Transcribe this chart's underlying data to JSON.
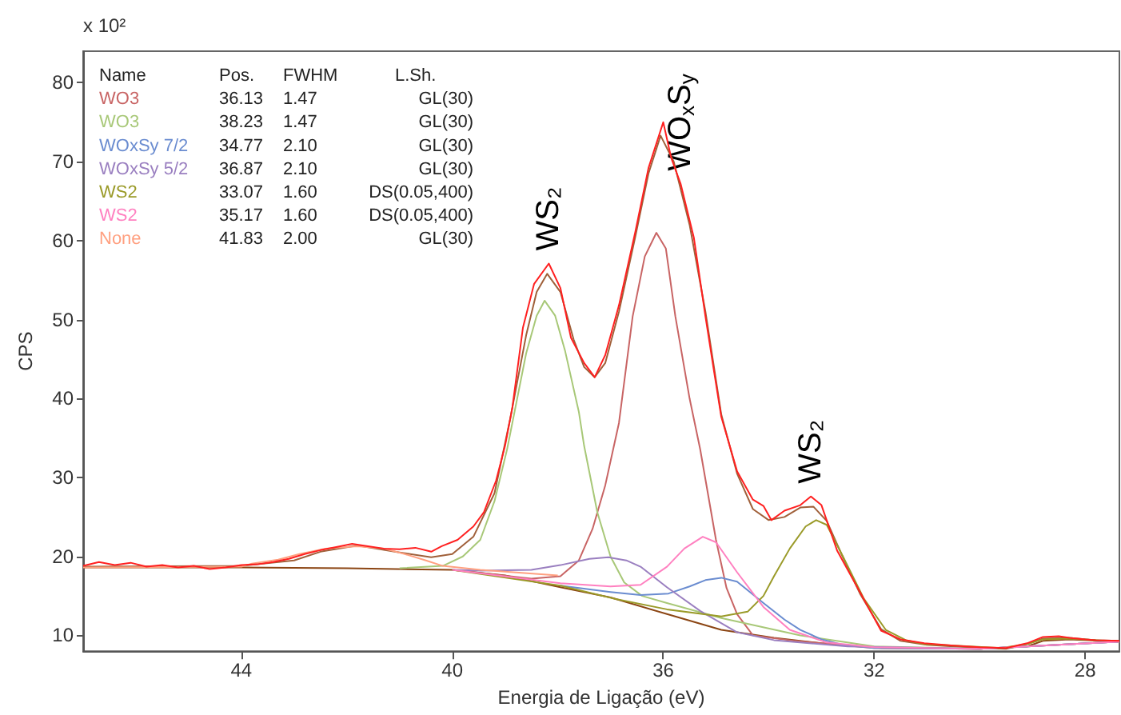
{
  "chart_data": {
    "type": "line",
    "xlabel": "Energia de Ligação (eV)",
    "ylabel": "CPS",
    "xlim": [
      47,
      27.35
    ],
    "xticks": [
      44,
      40,
      36,
      32,
      28
    ],
    "ylim": [
      8,
      84
    ],
    "yticks": [
      10,
      20,
      30,
      40,
      50,
      60,
      70,
      80
    ],
    "legend": "top left",
    "grid": false,
    "marker": "none",
    "line_style": "solid",
    "annotations": [
      "x 10²",
      "Name",
      "Pos.",
      "FWHM",
      "L.Sh.",
      "36.13",
      "1.47",
      "GL(30)",
      "38.23",
      "1.47",
      "GL(30)",
      "34.77",
      "2.10",
      "GL(30)",
      "36.87",
      "2.10",
      "GL(30)",
      "33.07",
      "1.60",
      "DS(0.05,400)",
      "35.17",
      "1.60",
      "DS(0.05,400)",
      "41.83",
      "2.00",
      "GL(30)",
      {
        "text": "WS₂",
        "x": 38.17,
        "y": 57.1
      },
      {
        "text": "WO$_{x}$S$_{y}$",
        "x": 35.67,
        "y": 67.2
      },
      {
        "text": "WS₂",
        "x": 33.2,
        "y": 27.6
      }
    ],
    "series": [
      {
        "color": "#a0603a",
        "x": [
          47,
          44,
          43,
          42.5,
          41.8,
          41,
          40.4,
          40,
          39.6,
          39.2,
          38.9,
          38.6,
          38.4,
          38.2,
          37.95,
          37.7,
          37.5,
          37.3,
          37.1,
          36.84,
          36.53,
          36.28,
          36.05,
          35.8,
          35.5,
          35.2,
          34.9,
          34.6,
          34.3,
          34,
          33.7,
          33.4,
          33.15,
          32.9,
          32.6,
          32.27,
          31.87,
          31.5,
          31,
          30,
          29.5,
          29.1,
          28.8,
          28.3,
          27.8,
          27.35
        ],
        "values": [
          18.7,
          18.8,
          19.5,
          20.6,
          21.4,
          20.5,
          19.9,
          20.3,
          22.5,
          28,
          37.5,
          48,
          53.5,
          55.8,
          53.5,
          47.5,
          44,
          42.7,
          44.5,
          51,
          60.5,
          68.5,
          73.3,
          70,
          62,
          51,
          38,
          30.5,
          26,
          24.6,
          25,
          26.2,
          26.3,
          24.5,
          20,
          15.3,
          10.8,
          9.3,
          8.8,
          8.4,
          8.3,
          8.9,
          9.6,
          9.7,
          9.4,
          9.3
        ]
      },
      {
        "color": "#8b4513",
        "x": [
          47,
          44,
          42,
          40,
          39,
          37.95,
          37,
          35.93,
          34.9,
          33.9,
          33,
          31.87,
          30,
          29.1,
          28.8,
          28.3,
          27.35
        ],
        "values": [
          18.6,
          18.6,
          18.5,
          18.3,
          17.6,
          16.1,
          14.8,
          12.7,
          10.7,
          9.7,
          9,
          8.4,
          8.3,
          8.6,
          9.3,
          9.5,
          9.2
        ]
      },
      {
        "name": "WO3",
        "color": "#c86464",
        "x": [
          40,
          38.5,
          37.95,
          37.6,
          37.34,
          37.1,
          36.84,
          36.58,
          36.35,
          36.13,
          35.95,
          35.77,
          35.5,
          35.3,
          35,
          34.8,
          34.6,
          34.3,
          33.5,
          32,
          30,
          27.35
        ],
        "values": [
          18.3,
          17.2,
          17.5,
          19.5,
          23.5,
          29,
          36.9,
          50.4,
          58,
          61,
          59,
          50.4,
          40,
          33.6,
          22.1,
          16,
          12.7,
          10,
          9.3,
          8.4,
          8.3,
          9.2
        ]
      },
      {
        "name": "WO3",
        "color": "#a8c878",
        "x": [
          41,
          40.18,
          39.8,
          39.47,
          39.2,
          38.96,
          38.6,
          38.4,
          38.25,
          38.05,
          37.86,
          37.6,
          37.5,
          37.25,
          37,
          36.74,
          36.4,
          35.93,
          34.9,
          33.4,
          32,
          30,
          27.35
        ],
        "values": [
          18.5,
          18.8,
          20,
          22.1,
          27,
          33.6,
          45.7,
          50.5,
          52.4,
          50.5,
          46,
          38.3,
          34,
          25.6,
          20,
          16.7,
          15,
          14.1,
          12.2,
          10,
          8.6,
          8.3,
          9.2
        ]
      },
      {
        "name": "WOxSy 7/2",
        "color": "#6a8cd0",
        "x": [
          37.95,
          37,
          36.43,
          35.9,
          35.5,
          35.2,
          34.9,
          34.6,
          34.1,
          33.7,
          33.4,
          33,
          32.6,
          32,
          30,
          27.35
        ],
        "values": [
          16.3,
          15.5,
          15.1,
          15.3,
          16.2,
          17,
          17.3,
          16.8,
          14.1,
          12,
          10.7,
          9.5,
          8.8,
          8.4,
          8.3,
          9.2
        ]
      },
      {
        "name": "WOxSy 5/2",
        "color": "#9a7fc0",
        "x": [
          40,
          39.47,
          38.5,
          37.95,
          37.4,
          37.04,
          36.7,
          36.43,
          35.93,
          35.3,
          34.6,
          33.9,
          32.5,
          30,
          27.35
        ],
        "values": [
          18.3,
          18.2,
          18.3,
          18.9,
          19.7,
          19.9,
          19.5,
          18.7,
          16.1,
          13.1,
          10.4,
          9.4,
          8.6,
          8.3,
          9.2
        ]
      },
      {
        "name": "WS2",
        "color": "#9a9a28",
        "x": [
          40,
          37.95,
          36.9,
          35.93,
          34.9,
          34.4,
          34.1,
          33.9,
          33.6,
          33.3,
          33.1,
          32.9,
          32.6,
          32.2,
          31.78,
          31.4,
          31.05,
          29.6,
          29.1,
          28.8,
          28.3,
          27.35
        ],
        "values": [
          18.3,
          16.3,
          14.6,
          13.3,
          12.4,
          13,
          15,
          17.5,
          21,
          23.8,
          24.6,
          24,
          20.1,
          14.7,
          10.7,
          9.4,
          8.9,
          8.4,
          8.9,
          9.5,
          9.6,
          9.2
        ]
      },
      {
        "name": "WS2",
        "color": "#ff80c0",
        "x": [
          40,
          37.95,
          37,
          36.43,
          35.93,
          35.6,
          35.25,
          35,
          34.6,
          34.1,
          33.6,
          32.9,
          32,
          30,
          27.35
        ],
        "values": [
          18.3,
          16.6,
          16.2,
          16.4,
          18.7,
          21,
          22.5,
          21.8,
          18,
          13.6,
          10.7,
          9.1,
          8.5,
          8.3,
          9.2
        ]
      },
      {
        "name": "None",
        "color": "#ffa080",
        "x": [
          47,
          44,
          43.8,
          43.3,
          42.9,
          42.4,
          41.8,
          41.3,
          40.9,
          40.5,
          40.18,
          39.47,
          38
        ],
        "values": [
          18.6,
          18.7,
          19.1,
          19.6,
          20.3,
          21,
          21.3,
          21,
          20.3,
          19.5,
          18.8,
          18.3,
          17.6
        ]
      },
      {
        "color": "#ff2020",
        "x": [
          47,
          46.7,
          46.4,
          46.1,
          45.8,
          45.5,
          45.2,
          44.9,
          44.6,
          44.3,
          44,
          43.7,
          43.4,
          43.1,
          42.8,
          42.5,
          42.2,
          41.9,
          41.6,
          41.3,
          41,
          40.7,
          40.4,
          40.2,
          39.9,
          39.6,
          39.4,
          39.17,
          39,
          38.86,
          38.66,
          38.45,
          38.17,
          37.95,
          37.75,
          37.5,
          37.3,
          37.1,
          36.84,
          36.53,
          36.28,
          36,
          35.85,
          35.67,
          35.42,
          35.2,
          35.05,
          34.9,
          34.6,
          34.3,
          34.1,
          33.95,
          33.7,
          33.4,
          33.2,
          33,
          32.7,
          32.27,
          31.87,
          31.5,
          31.05,
          30.5,
          30,
          29.5,
          29.1,
          28.8,
          28.5,
          28.3,
          28,
          27.8,
          27.35
        ],
        "values": [
          18.8,
          19.3,
          18.9,
          19.2,
          18.7,
          18.9,
          18.6,
          18.8,
          18.4,
          18.6,
          18.9,
          19,
          19.3,
          19.7,
          20.3,
          20.8,
          21.2,
          21.6,
          21.3,
          21,
          20.9,
          21.1,
          20.6,
          21.3,
          22.1,
          23.8,
          25.6,
          29.6,
          34,
          38.9,
          49,
          54.5,
          57.1,
          54,
          47.7,
          44.5,
          42.7,
          45.5,
          51.8,
          61.1,
          69.2,
          75,
          70.5,
          67.2,
          60.4,
          50.4,
          44,
          37.7,
          30.8,
          27.2,
          26.4,
          24.6,
          25.8,
          26.5,
          27.6,
          26.5,
          20.7,
          15.5,
          10.6,
          9.5,
          9,
          8.7,
          8.5,
          8.4,
          9,
          9.8,
          9.9,
          9.7,
          9.5,
          9.4,
          9.3
        ]
      }
    ]
  }
}
